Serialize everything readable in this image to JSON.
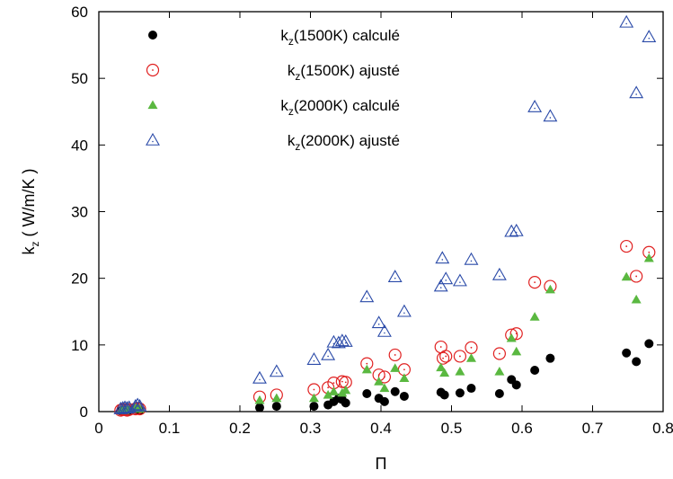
{
  "chart_data": {
    "type": "scatter",
    "xlabel": "Π",
    "ylabel": {
      "base": "k",
      "sub": "z",
      "rest": " ( W/m/K )"
    },
    "xlim": [
      0,
      0.8
    ],
    "ylim": [
      0,
      60
    ],
    "xticks": [
      "0",
      "0.1",
      "0.2",
      "0.3",
      "0.4",
      "0.5",
      "0.6",
      "0.7",
      "0.8"
    ],
    "yticks": [
      "0",
      "10",
      "20",
      "30",
      "40",
      "50",
      "60"
    ],
    "grid": false,
    "legend_position": "top-left",
    "series": [
      {
        "legend": {
          "base": "k",
          "sub": "z",
          "rest": "(1500K) calculé"
        },
        "marker": "filled-circle",
        "color": "#000000",
        "points": [
          [
            0.031,
            0.1
          ],
          [
            0.034,
            0.2
          ],
          [
            0.037,
            0.2
          ],
          [
            0.04,
            0.1
          ],
          [
            0.043,
            0.2
          ],
          [
            0.052,
            0.3
          ],
          [
            0.055,
            0.3
          ],
          [
            0.058,
            0.2
          ],
          [
            0.228,
            0.6
          ],
          [
            0.252,
            0.8
          ],
          [
            0.305,
            0.8
          ],
          [
            0.325,
            1.0
          ],
          [
            0.333,
            1.5
          ],
          [
            0.34,
            2.0
          ],
          [
            0.345,
            1.8
          ],
          [
            0.35,
            1.3
          ],
          [
            0.38,
            2.7
          ],
          [
            0.397,
            2.0
          ],
          [
            0.405,
            1.5
          ],
          [
            0.42,
            3.0
          ],
          [
            0.433,
            2.3
          ],
          [
            0.485,
            2.9
          ],
          [
            0.49,
            2.5
          ],
          [
            0.512,
            2.8
          ],
          [
            0.528,
            3.5
          ],
          [
            0.568,
            2.7
          ],
          [
            0.585,
            4.8
          ],
          [
            0.592,
            4.0
          ],
          [
            0.618,
            6.2
          ],
          [
            0.64,
            8.0
          ],
          [
            0.748,
            8.8
          ],
          [
            0.762,
            7.5
          ],
          [
            0.78,
            10.2
          ]
        ]
      },
      {
        "legend": {
          "base": "k",
          "sub": "z",
          "rest": "(1500K) ajusté"
        },
        "marker": "open-circle-dot",
        "color": "#e02020",
        "points": [
          [
            0.031,
            0.2
          ],
          [
            0.034,
            0.3
          ],
          [
            0.037,
            0.3
          ],
          [
            0.04,
            0.2
          ],
          [
            0.043,
            0.3
          ],
          [
            0.052,
            0.4
          ],
          [
            0.055,
            0.5
          ],
          [
            0.058,
            0.4
          ],
          [
            0.228,
            2.2
          ],
          [
            0.252,
            2.5
          ],
          [
            0.305,
            3.3
          ],
          [
            0.325,
            3.6
          ],
          [
            0.333,
            4.3
          ],
          [
            0.345,
            4.5
          ],
          [
            0.35,
            4.4
          ],
          [
            0.38,
            7.2
          ],
          [
            0.397,
            5.5
          ],
          [
            0.405,
            5.2
          ],
          [
            0.42,
            8.5
          ],
          [
            0.433,
            6.3
          ],
          [
            0.485,
            9.7
          ],
          [
            0.488,
            8.0
          ],
          [
            0.492,
            8.3
          ],
          [
            0.512,
            8.3
          ],
          [
            0.528,
            9.6
          ],
          [
            0.568,
            8.7
          ],
          [
            0.585,
            11.5
          ],
          [
            0.592,
            11.7
          ],
          [
            0.618,
            19.4
          ],
          [
            0.64,
            18.8
          ],
          [
            0.748,
            24.8
          ],
          [
            0.762,
            20.3
          ],
          [
            0.78,
            23.9
          ]
        ]
      },
      {
        "legend": {
          "base": "k",
          "sub": "z",
          "rest": "(2000K) calculé"
        },
        "marker": "filled-triangle",
        "color": "#5ab840",
        "points": [
          [
            0.031,
            0.2
          ],
          [
            0.034,
            0.3
          ],
          [
            0.037,
            0.2
          ],
          [
            0.04,
            0.3
          ],
          [
            0.043,
            0.3
          ],
          [
            0.052,
            0.5
          ],
          [
            0.055,
            0.5
          ],
          [
            0.058,
            0.4
          ],
          [
            0.228,
            1.7
          ],
          [
            0.252,
            2.0
          ],
          [
            0.305,
            2.0
          ],
          [
            0.325,
            2.5
          ],
          [
            0.333,
            3.0
          ],
          [
            0.345,
            2.8
          ],
          [
            0.35,
            3.2
          ],
          [
            0.38,
            6.3
          ],
          [
            0.397,
            4.5
          ],
          [
            0.405,
            3.5
          ],
          [
            0.42,
            6.5
          ],
          [
            0.433,
            5.0
          ],
          [
            0.485,
            6.6
          ],
          [
            0.49,
            5.8
          ],
          [
            0.512,
            6.0
          ],
          [
            0.528,
            8.0
          ],
          [
            0.568,
            6.0
          ],
          [
            0.585,
            11.0
          ],
          [
            0.592,
            9.0
          ],
          [
            0.618,
            14.2
          ],
          [
            0.64,
            18.3
          ],
          [
            0.748,
            20.2
          ],
          [
            0.762,
            16.8
          ],
          [
            0.78,
            23.0
          ]
        ]
      },
      {
        "legend": {
          "base": "k",
          "sub": "z",
          "rest": "(2000K) ajusté"
        },
        "marker": "open-triangle-dot",
        "color": "#2a4aa8",
        "points": [
          [
            0.031,
            0.4
          ],
          [
            0.034,
            0.5
          ],
          [
            0.037,
            0.6
          ],
          [
            0.04,
            0.5
          ],
          [
            0.043,
            0.6
          ],
          [
            0.052,
            0.8
          ],
          [
            0.055,
            1.0
          ],
          [
            0.058,
            0.8
          ],
          [
            0.228,
            5.0
          ],
          [
            0.252,
            6.0
          ],
          [
            0.305,
            7.8
          ],
          [
            0.325,
            8.5
          ],
          [
            0.333,
            10.4
          ],
          [
            0.34,
            10.3
          ],
          [
            0.345,
            10.6
          ],
          [
            0.35,
            10.5
          ],
          [
            0.38,
            17.2
          ],
          [
            0.397,
            13.3
          ],
          [
            0.405,
            12.0
          ],
          [
            0.42,
            20.2
          ],
          [
            0.433,
            15.0
          ],
          [
            0.485,
            18.8
          ],
          [
            0.487,
            23.0
          ],
          [
            0.492,
            19.9
          ],
          [
            0.512,
            19.6
          ],
          [
            0.528,
            22.8
          ],
          [
            0.568,
            20.5
          ],
          [
            0.585,
            27.0
          ],
          [
            0.592,
            27.1
          ],
          [
            0.618,
            45.7
          ],
          [
            0.64,
            44.3
          ],
          [
            0.748,
            58.4
          ],
          [
            0.762,
            47.8
          ],
          [
            0.78,
            56.2
          ]
        ]
      }
    ]
  }
}
